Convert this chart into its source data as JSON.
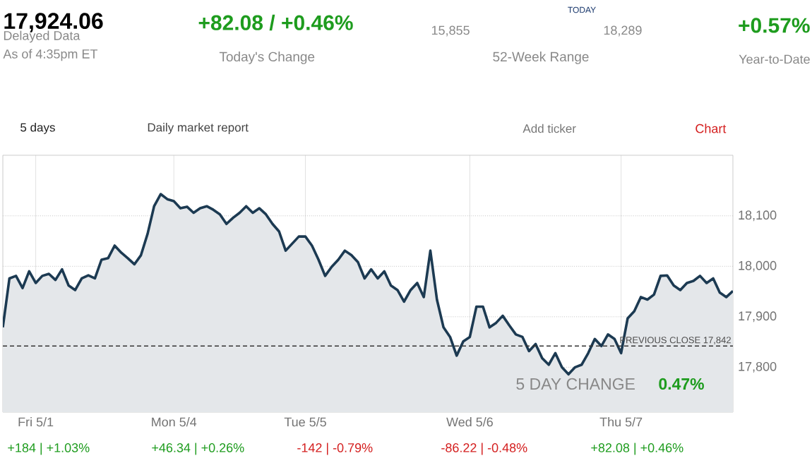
{
  "chart_data": {
    "type": "area",
    "title": "17,924.06",
    "annotations": [
      "Delayed Data",
      "As of 4:35pm ET",
      "+82.08 / +0.46%",
      "Today's Change",
      "15,855",
      "18,289",
      "TODAY",
      "52-Week Range",
      "+0.57%",
      "Year-to-Date",
      "5 days",
      "Daily market report",
      "Add ticker",
      "Chart",
      "5 DAY CHANGE",
      "0.47%",
      "+184 | +1.03%",
      "+46.34 | +0.26%",
      "-142 | -0.79%",
      "-86.22 | -0.48%",
      "+82.08 | +0.46%"
    ],
    "categories": [
      null,
      null,
      null,
      null,
      null,
      "Fri 5/1",
      null,
      null,
      null,
      null,
      null,
      null,
      null,
      null,
      null,
      null,
      null,
      null,
      null,
      null,
      null,
      null,
      null,
      null,
      null,
      null,
      "Mon 5/4",
      null,
      null,
      null,
      null,
      null,
      null,
      null,
      null,
      null,
      null,
      null,
      null,
      null,
      null,
      null,
      null,
      null,
      null,
      null,
      "Tue 5/5",
      null,
      null,
      null,
      null,
      null,
      null,
      null,
      null,
      null,
      null,
      null,
      null,
      null,
      null,
      null,
      null,
      null,
      null,
      null,
      null,
      null,
      null,
      null,
      null,
      "Wed 5/6",
      null,
      null,
      null,
      null,
      null,
      null,
      null,
      null,
      null,
      null,
      null,
      null,
      null,
      null,
      null,
      null,
      null,
      null,
      null,
      null,
      null,
      null,
      "Thu 5/7",
      null,
      null,
      null,
      null,
      null,
      null,
      null,
      null,
      null,
      null,
      null,
      null,
      null,
      null,
      null,
      null,
      null
    ],
    "series": [
      {
        "color": "#1c3a52",
        "values": [
          17879,
          17976,
          17981,
          17957,
          17990,
          17967,
          17981,
          17985,
          17973,
          17994,
          17962,
          17953,
          17976,
          17982,
          17976,
          18013,
          18016,
          18041,
          18027,
          18016,
          18004,
          18022,
          18064,
          18119,
          18143,
          18133,
          18129,
          18115,
          18118,
          18106,
          18115,
          18119,
          18112,
          18103,
          18084,
          18096,
          18106,
          18119,
          18106,
          18115,
          18103,
          18084,
          18069,
          18031,
          18045,
          18059,
          18059,
          18041,
          18013,
          17981,
          17999,
          18013,
          18031,
          18022,
          18008,
          17976,
          17994,
          17976,
          17990,
          17962,
          17953,
          17930,
          17953,
          17967,
          17939,
          18031,
          17934,
          17879,
          17860,
          17823,
          17851,
          17860,
          17920,
          17920,
          17879,
          17888,
          17902,
          17883,
          17865,
          17860,
          17832,
          17846,
          17818,
          17805,
          17828,
          17800,
          17786,
          17800,
          17805,
          17828,
          17856,
          17842,
          17865,
          17856,
          17828,
          17897,
          17911,
          17939,
          17934,
          17944,
          17981,
          17982,
          17962,
          17953,
          17967,
          17971,
          17981,
          17967,
          17976,
          17948,
          17939,
          17951
        ]
      }
    ],
    "ylim": [
      17711,
      18220
    ],
    "yticks": [
      {
        "value": 17800,
        "label": "17,800"
      },
      {
        "value": 17900,
        "label": "17,900"
      },
      {
        "value": 18000,
        "label": "18,000"
      },
      {
        "value": 18100,
        "label": "18,100"
      }
    ],
    "grid": true,
    "ref_lines": [
      {
        "axis": "y",
        "value": 17842,
        "label": "PREVIOUS CLOSE 17,842",
        "line_style": "dashed",
        "color": "#333333"
      }
    ]
  }
}
